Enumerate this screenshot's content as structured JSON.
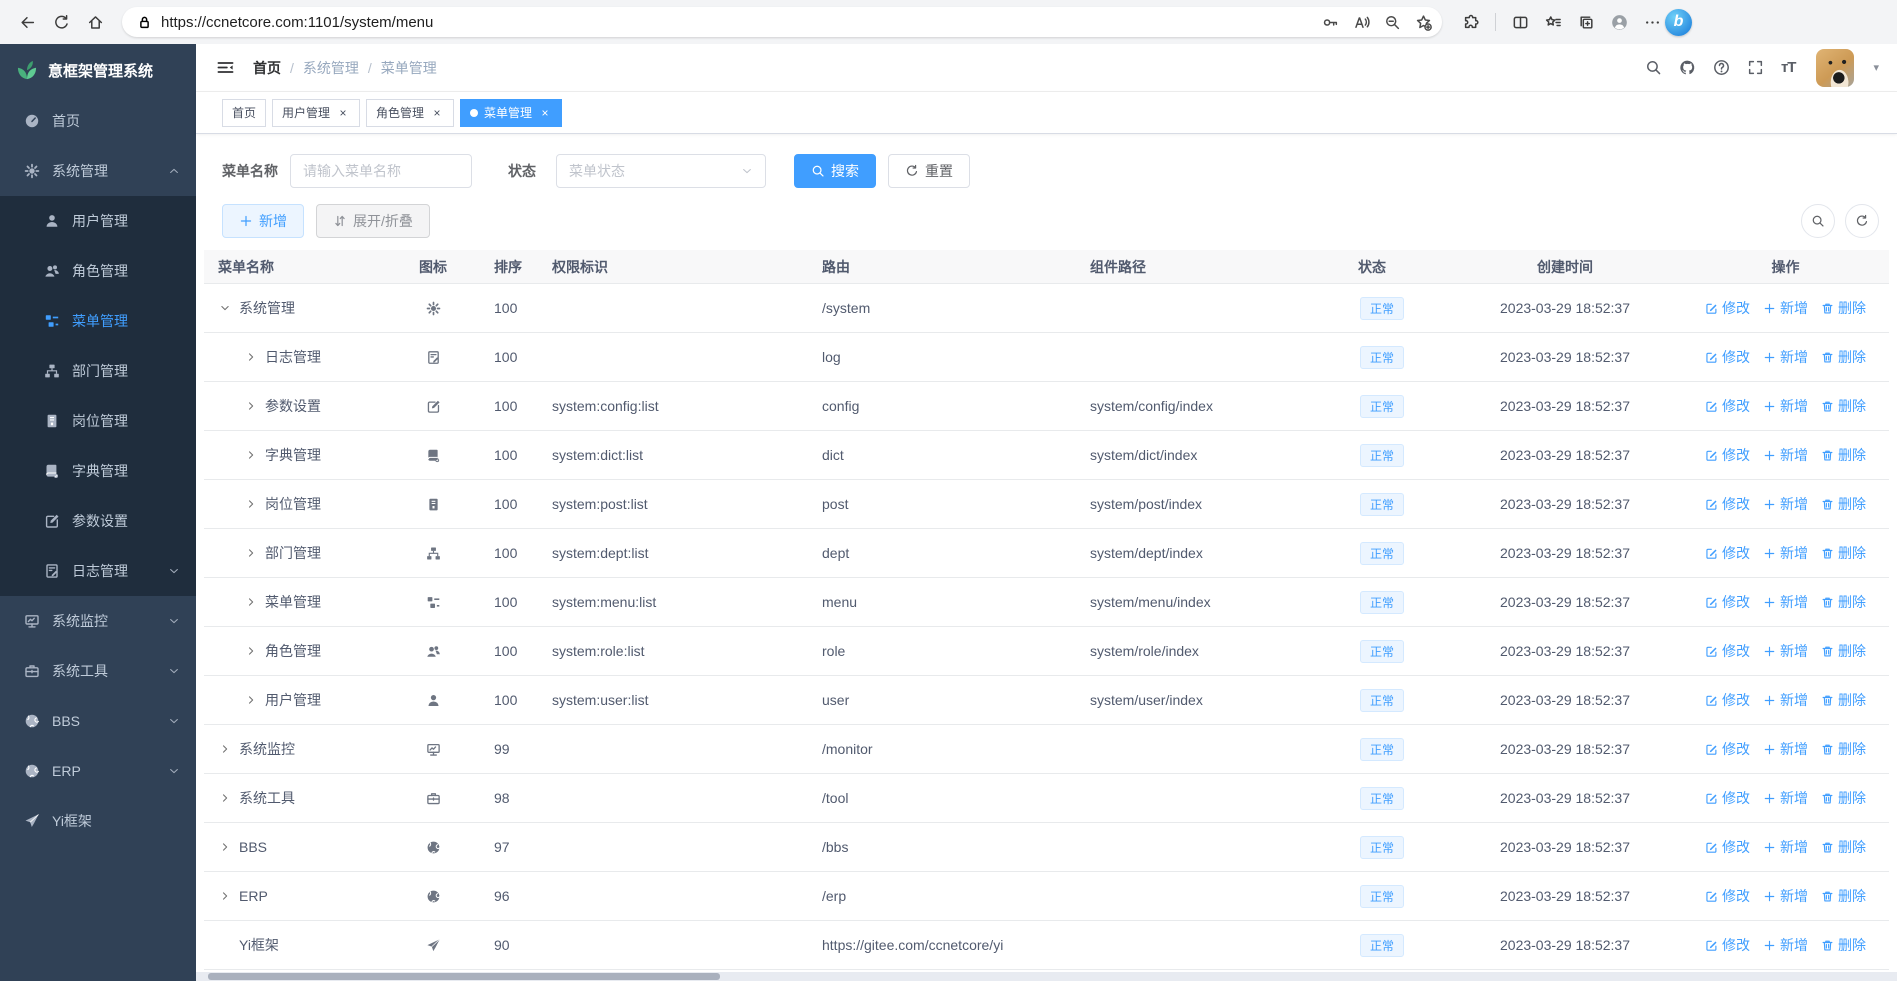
{
  "browser": {
    "url": "https://ccnetcore.com:1101/system/menu",
    "nav_icons": [
      "back-icon",
      "refresh-icon",
      "home-icon"
    ],
    "addressbar_icons": [
      "key-icon",
      "read-aloud-icon",
      "zoom-out-icon",
      "favorite-add-icon"
    ],
    "toolbar_icons": [
      "extensions-icon",
      "divider",
      "split-screen-icon",
      "favorites-bar-icon",
      "collections-icon",
      "profile-icon",
      "more-icon"
    ],
    "copilot_label": "b"
  },
  "app": {
    "title": "意框架管理系统",
    "sidebar": {
      "items": [
        {
          "label": "首页",
          "icon": "dashboard-icon",
          "level": 0,
          "arrow": null,
          "active": false
        },
        {
          "label": "系统管理",
          "icon": "gear-icon",
          "level": 0,
          "arrow": "up",
          "active": false
        },
        {
          "label": "用户管理",
          "icon": "user-icon",
          "level": 1,
          "arrow": null,
          "active": false
        },
        {
          "label": "角色管理",
          "icon": "peoples-icon",
          "level": 1,
          "arrow": null,
          "active": false
        },
        {
          "label": "菜单管理",
          "icon": "tree-table-icon",
          "level": 1,
          "arrow": null,
          "active": true
        },
        {
          "label": "部门管理",
          "icon": "tree-icon",
          "level": 1,
          "arrow": null,
          "active": false
        },
        {
          "label": "岗位管理",
          "icon": "post-icon",
          "level": 1,
          "arrow": null,
          "active": false
        },
        {
          "label": "字典管理",
          "icon": "dict-icon",
          "level": 1,
          "arrow": null,
          "active": false
        },
        {
          "label": "参数设置",
          "icon": "edit-icon",
          "level": 1,
          "arrow": null,
          "active": false
        },
        {
          "label": "日志管理",
          "icon": "log-icon",
          "level": 1,
          "arrow": "down",
          "active": false
        },
        {
          "label": "系统监控",
          "icon": "monitor-icon",
          "level": 0,
          "arrow": "down",
          "active": false
        },
        {
          "label": "系统工具",
          "icon": "tool-icon",
          "level": 0,
          "arrow": "down",
          "active": false
        },
        {
          "label": "BBS",
          "icon": "globe-icon",
          "level": 0,
          "arrow": "down",
          "active": false
        },
        {
          "label": "ERP",
          "icon": "globe-icon",
          "level": 0,
          "arrow": "down",
          "active": false
        },
        {
          "label": "Yi框架",
          "icon": "send-icon",
          "level": 0,
          "arrow": null,
          "active": false
        }
      ]
    },
    "navbar": {
      "breadcrumb": [
        "首页",
        "系统管理",
        "菜单管理"
      ],
      "right_icons": [
        "search-icon",
        "github-icon",
        "question-icon",
        "fullscreen-icon"
      ],
      "font_size_icon_text": "тT"
    },
    "tabs": [
      {
        "label": "首页",
        "closable": false,
        "active": false
      },
      {
        "label": "用户管理",
        "closable": true,
        "active": false
      },
      {
        "label": "角色管理",
        "closable": true,
        "active": false
      },
      {
        "label": "菜单管理",
        "closable": true,
        "active": true
      }
    ],
    "filter": {
      "name_label": "菜单名称",
      "name_placeholder": "请输入菜单名称",
      "name_value": "",
      "status_label": "状态",
      "status_placeholder": "菜单状态",
      "search_label": "搜索",
      "reset_label": "重置"
    },
    "toolbar": {
      "add_label": "新增",
      "expand_label": "展开/折叠"
    },
    "table": {
      "columns": [
        "菜单名称",
        "图标",
        "排序",
        "权限标识",
        "路由",
        "组件路径",
        "状态",
        "创建时间",
        "操作"
      ],
      "action_labels": {
        "edit": "修改",
        "add": "新增",
        "delete": "删除"
      },
      "rows": [
        {
          "name": "系统管理",
          "level": 0,
          "expand": "down",
          "icon": "gear-icon",
          "sort": "100",
          "perm": "",
          "route": "/system",
          "component": "",
          "status": "正常",
          "created": "2023-03-29 18:52:37"
        },
        {
          "name": "日志管理",
          "level": 1,
          "expand": "right",
          "icon": "log-icon",
          "sort": "100",
          "perm": "",
          "route": "log",
          "component": "",
          "status": "正常",
          "created": "2023-03-29 18:52:37"
        },
        {
          "name": "参数设置",
          "level": 1,
          "expand": "right",
          "icon": "edit-icon",
          "sort": "100",
          "perm": "system:config:list",
          "route": "config",
          "component": "system/config/index",
          "status": "正常",
          "created": "2023-03-29 18:52:37"
        },
        {
          "name": "字典管理",
          "level": 1,
          "expand": "right",
          "icon": "dict-icon",
          "sort": "100",
          "perm": "system:dict:list",
          "route": "dict",
          "component": "system/dict/index",
          "status": "正常",
          "created": "2023-03-29 18:52:37"
        },
        {
          "name": "岗位管理",
          "level": 1,
          "expand": "right",
          "icon": "post-icon",
          "sort": "100",
          "perm": "system:post:list",
          "route": "post",
          "component": "system/post/index",
          "status": "正常",
          "created": "2023-03-29 18:52:37"
        },
        {
          "name": "部门管理",
          "level": 1,
          "expand": "right",
          "icon": "tree-icon",
          "sort": "100",
          "perm": "system:dept:list",
          "route": "dept",
          "component": "system/dept/index",
          "status": "正常",
          "created": "2023-03-29 18:52:37"
        },
        {
          "name": "菜单管理",
          "level": 1,
          "expand": "right",
          "icon": "tree-table-icon",
          "sort": "100",
          "perm": "system:menu:list",
          "route": "menu",
          "component": "system/menu/index",
          "status": "正常",
          "created": "2023-03-29 18:52:37"
        },
        {
          "name": "角色管理",
          "level": 1,
          "expand": "right",
          "icon": "peoples-icon",
          "sort": "100",
          "perm": "system:role:list",
          "route": "role",
          "component": "system/role/index",
          "status": "正常",
          "created": "2023-03-29 18:52:37"
        },
        {
          "name": "用户管理",
          "level": 1,
          "expand": "right",
          "icon": "user-icon",
          "sort": "100",
          "perm": "system:user:list",
          "route": "user",
          "component": "system/user/index",
          "status": "正常",
          "created": "2023-03-29 18:52:37"
        },
        {
          "name": "系统监控",
          "level": 0,
          "expand": "right",
          "icon": "monitor-icon",
          "sort": "99",
          "perm": "",
          "route": "/monitor",
          "component": "",
          "status": "正常",
          "created": "2023-03-29 18:52:37"
        },
        {
          "name": "系统工具",
          "level": 0,
          "expand": "right",
          "icon": "tool-icon",
          "sort": "98",
          "perm": "",
          "route": "/tool",
          "component": "",
          "status": "正常",
          "created": "2023-03-29 18:52:37"
        },
        {
          "name": "BBS",
          "level": 0,
          "expand": "right",
          "icon": "globe-icon",
          "sort": "97",
          "perm": "",
          "route": "/bbs",
          "component": "",
          "status": "正常",
          "created": "2023-03-29 18:52:37"
        },
        {
          "name": "ERP",
          "level": 0,
          "expand": "right",
          "icon": "globe-icon",
          "sort": "96",
          "perm": "",
          "route": "/erp",
          "component": "",
          "status": "正常",
          "created": "2023-03-29 18:52:37"
        },
        {
          "name": "Yi框架",
          "level": 0,
          "expand": null,
          "icon": "send-icon",
          "sort": "90",
          "perm": "",
          "route": "https://gitee.com/ccnetcore/yi",
          "component": "",
          "status": "正常",
          "created": "2023-03-29 18:52:37"
        }
      ]
    }
  },
  "colors": {
    "accent": "#409eff",
    "sidebar_bg": "#304156",
    "submenu_bg": "#1f2d3d",
    "badge_bg": "#ecf5ff",
    "table_header_bg": "#f8f8f9"
  }
}
